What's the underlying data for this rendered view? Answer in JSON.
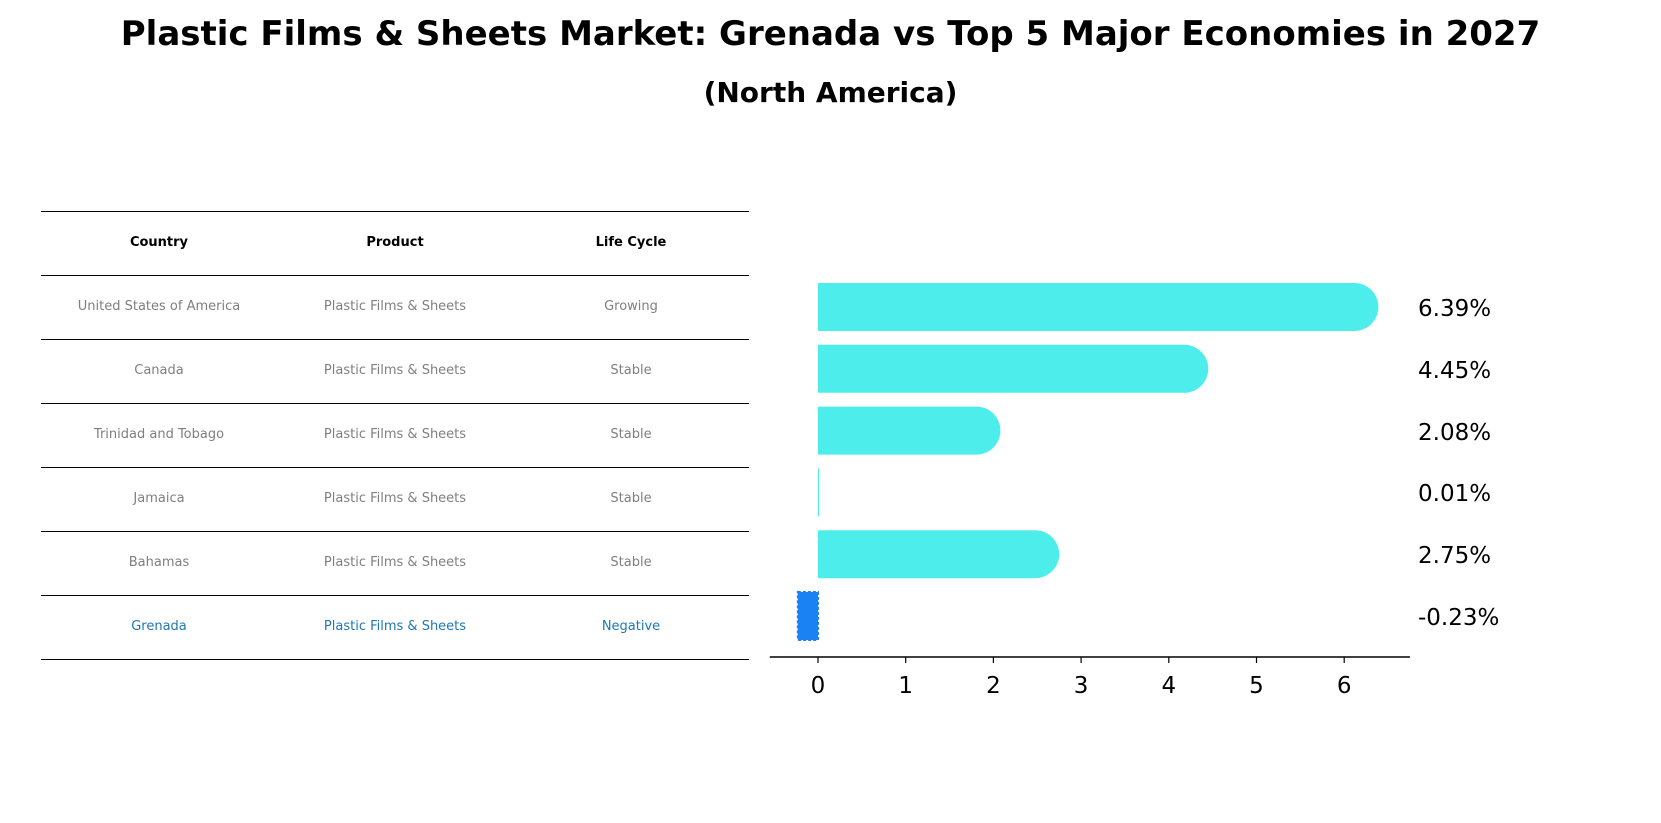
{
  "title": "Plastic Films & Sheets Market: Grenada vs Top 5 Major Economies in 2027",
  "subtitle": "(North America)",
  "table": {
    "headers": [
      "Country",
      "Product",
      "Life Cycle"
    ],
    "rows": [
      {
        "country": "United States of America",
        "product": "Plastic Films & Sheets",
        "life_cycle": "Growing"
      },
      {
        "country": "Canada",
        "product": "Plastic Films & Sheets",
        "life_cycle": "Stable"
      },
      {
        "country": "Trinidad and Tobago",
        "product": "Plastic Films & Sheets",
        "life_cycle": "Stable"
      },
      {
        "country": "Jamaica",
        "product": "Plastic Films & Sheets",
        "life_cycle": "Stable"
      },
      {
        "country": "Bahamas",
        "product": "Plastic Films & Sheets",
        "life_cycle": "Stable"
      },
      {
        "country": "Grenada",
        "product": "Plastic Films & Sheets",
        "life_cycle": "Negative"
      }
    ],
    "highlight_color": "#1f77b4",
    "text_color": "#7f7f7f"
  },
  "chart_data": {
    "type": "bar",
    "orientation": "horizontal",
    "title": "Plastic Films & Sheets Market: Grenada vs Top 5 Major Economies in 2027",
    "subtitle": "(North America)",
    "categories": [
      "United States of America",
      "Canada",
      "Trinidad and Tobago",
      "Jamaica",
      "Bahamas",
      "Grenada"
    ],
    "values": [
      6.39,
      4.45,
      2.08,
      0.01,
      2.75,
      -0.23
    ],
    "value_labels": [
      "6.39%",
      "4.45%",
      "2.08%",
      "0.01%",
      "2.75%",
      "-0.23%"
    ],
    "xlabel": "",
    "ylabel": "",
    "xticks": [
      0,
      1,
      2,
      3,
      4,
      5,
      6
    ],
    "xlim": [
      -0.55,
      6.75
    ],
    "grid": false,
    "colors": {
      "default": "#4dedeb",
      "highlight": "#1a82f2"
    },
    "highlight_category": "Grenada"
  }
}
